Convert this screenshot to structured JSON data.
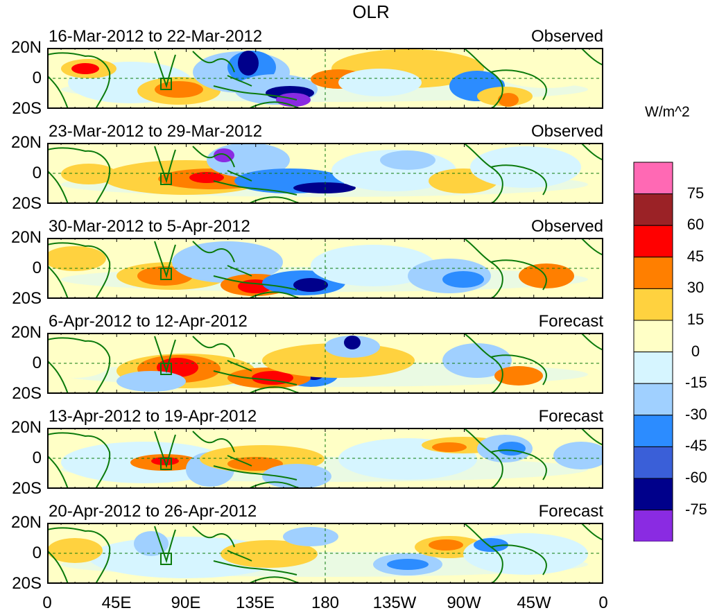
{
  "title": "OLR",
  "units_label": "W/m^2",
  "y_labels": [
    "20N",
    "0",
    "20S"
  ],
  "x_labels": [
    "0",
    "45E",
    "90E",
    "135E",
    "180",
    "135W",
    "90W",
    "45W",
    "0"
  ],
  "panels": [
    {
      "period": "16-Mar-2012 to 22-Mar-2012",
      "status": "Observed"
    },
    {
      "period": "23-Mar-2012 to 29-Mar-2012",
      "status": "Observed"
    },
    {
      "period": "30-Mar-2012 to 5-Apr-2012",
      "status": "Observed"
    },
    {
      "period": "6-Apr-2012 to 12-Apr-2012",
      "status": "Forecast"
    },
    {
      "period": "13-Apr-2012 to 19-Apr-2012",
      "status": "Forecast"
    },
    {
      "period": "20-Apr-2012 to 26-Apr-2012",
      "status": "Forecast"
    }
  ],
  "colorbar": {
    "labels": [
      "75",
      "60",
      "45",
      "30",
      "15",
      "0",
      "-15",
      "-30",
      "-45",
      "-60",
      "-75"
    ],
    "colors": [
      "#ff69b4",
      "#9b2226",
      "#ff0000",
      "#ff7f00",
      "#ffd23f",
      "#ffffc6",
      "#d6f5ff",
      "#a0d0ff",
      "#2c8cff",
      "#3a5fd8",
      "#00008b",
      "#8a2be2"
    ]
  },
  "colors": {
    "coastline": "#0b7a0b",
    "frame": "#000000"
  }
}
